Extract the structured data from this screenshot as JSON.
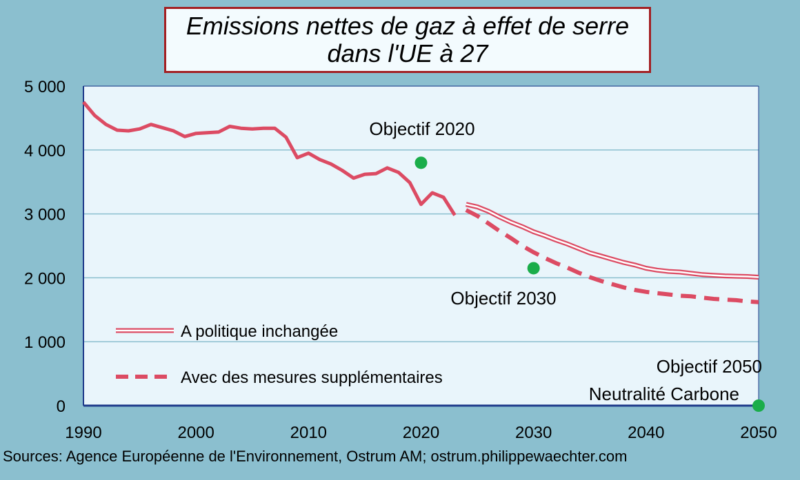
{
  "chart_data": {
    "type": "line",
    "title": [
      "Emissions nettes de gaz à effet de serre",
      "dans l'UE à 27"
    ],
    "xlim": [
      1990,
      2050
    ],
    "ylim": [
      0,
      5000
    ],
    "xticks": [
      1990,
      2000,
      2010,
      2020,
      2030,
      2040,
      2050
    ],
    "yticks": [
      0,
      1000,
      2000,
      3000,
      4000,
      5000
    ],
    "ytick_labels": [
      "0",
      "1 000",
      "2 000",
      "3 000",
      "4 000",
      "5 000"
    ],
    "grid": "horizontal",
    "series": [
      {
        "style": "solid",
        "x": [
          1990,
          1991,
          1992,
          1993,
          1994,
          1995,
          1996,
          1997,
          1998,
          1999,
          2000,
          2001,
          2002,
          2003,
          2004,
          2005,
          2006,
          2007,
          2008,
          2009,
          2010,
          2011,
          2012,
          2013,
          2014,
          2015,
          2016,
          2017,
          2018,
          2019,
          2020,
          2021,
          2022,
          2023
        ],
        "y": [
          4750,
          4540,
          4400,
          4310,
          4300,
          4330,
          4400,
          4350,
          4300,
          4210,
          4260,
          4270,
          4280,
          4370,
          4340,
          4330,
          4340,
          4340,
          4200,
          3880,
          3950,
          3850,
          3780,
          3680,
          3560,
          3620,
          3630,
          3720,
          3650,
          3490,
          3150,
          3330,
          3260,
          2980
        ]
      },
      {
        "name": "A politique inchangée",
        "style": "double",
        "x": [
          2024,
          2025,
          2026,
          2027,
          2028,
          2029,
          2030,
          2031,
          2032,
          2033,
          2034,
          2035,
          2036,
          2037,
          2038,
          2039,
          2040,
          2041,
          2042,
          2043,
          2044,
          2045,
          2046,
          2047,
          2048,
          2049,
          2050
        ],
        "y": [
          3150,
          3110,
          3040,
          2950,
          2870,
          2800,
          2720,
          2660,
          2590,
          2530,
          2460,
          2390,
          2340,
          2290,
          2240,
          2200,
          2150,
          2120,
          2100,
          2090,
          2070,
          2050,
          2040,
          2030,
          2025,
          2020,
          2010
        ]
      },
      {
        "name": "Avec des mesures supplémentaires",
        "style": "dashed",
        "x": [
          2024,
          2025,
          2026,
          2027,
          2028,
          2029,
          2030,
          2031,
          2032,
          2033,
          2034,
          2035,
          2036,
          2037,
          2038,
          2039,
          2040,
          2041,
          2042,
          2043,
          2044,
          2045,
          2046,
          2047,
          2048,
          2049,
          2050
        ],
        "y": [
          3060,
          2970,
          2850,
          2730,
          2620,
          2500,
          2400,
          2310,
          2230,
          2160,
          2080,
          2010,
          1950,
          1900,
          1850,
          1810,
          1780,
          1760,
          1740,
          1720,
          1710,
          1690,
          1670,
          1660,
          1650,
          1630,
          1620
        ]
      }
    ],
    "targets": [
      {
        "x": 2020,
        "y": 3800,
        "label": [
          "Objectif 2020"
        ]
      },
      {
        "x": 2030,
        "y": 2150,
        "label": [
          "Objectif 2030"
        ]
      },
      {
        "x": 2050,
        "y": 0,
        "label": [
          "Objectif 2050",
          "Neutralité Carbone"
        ]
      }
    ],
    "colors": {
      "line": "#dc4b63",
      "target": "#1aad4a",
      "plot_bg": "#e9f5fb",
      "page_bg": "#8bbfcf",
      "grid": "#8bbfcf",
      "axis": "#1d3a8a"
    }
  },
  "source": "Sources: Agence Européenne de l'Environnement, Ostrum AM; ostrum.philippewaechter.com"
}
